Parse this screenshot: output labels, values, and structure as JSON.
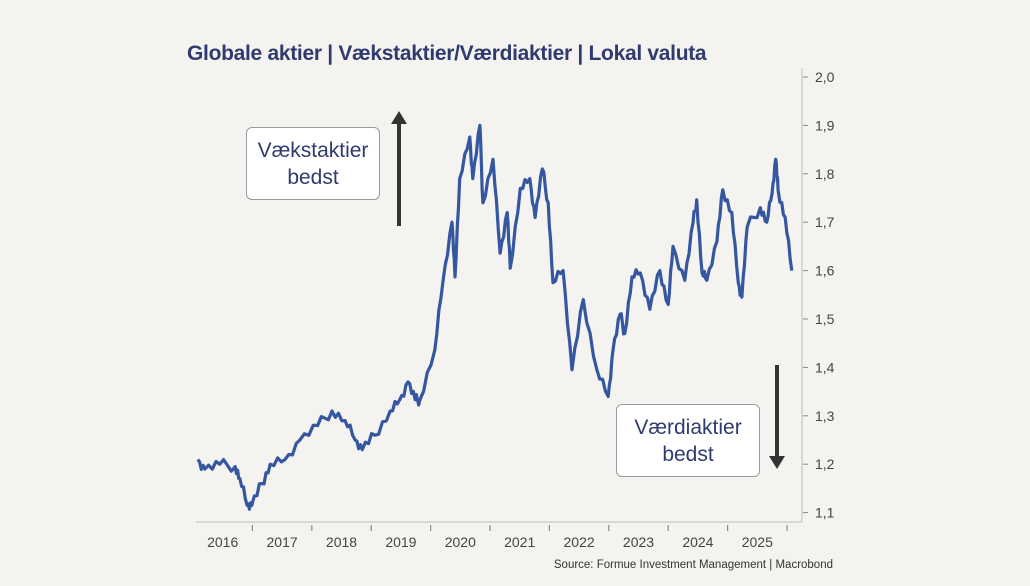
{
  "chart_data": {
    "type": "line",
    "title": "Globale aktier | Vækstaktier/Værdiaktier | Lokal valuta",
    "xlabel": "",
    "ylabel": "",
    "ylim": [
      1.1,
      2.0
    ],
    "xlim": [
      2016.0,
      2026.1
    ],
    "grid": false,
    "y_ticks": [
      "1,1",
      "1,2",
      "1,3",
      "1,4",
      "1,5",
      "1,6",
      "1,7",
      "1,8",
      "1,9",
      "2,0"
    ],
    "y_tick_values": [
      1.1,
      1.2,
      1.3,
      1.4,
      1.5,
      1.6,
      1.7,
      1.8,
      1.9,
      2.0
    ],
    "x_ticks": [
      "2016",
      "2017",
      "2018",
      "2019",
      "2020",
      "2021",
      "2022",
      "2023",
      "2024",
      "2025"
    ],
    "line_color": "#3457a0",
    "series": [
      {
        "name": "Vækstaktier/Værdiaktier",
        "x": [
          2016.08,
          2016.2,
          2016.45,
          2016.71,
          2016.79,
          2016.91,
          2016.99,
          2017.16,
          2017.3,
          2017.55,
          2017.8,
          2018.1,
          2018.34,
          2018.56,
          2018.73,
          2018.85,
          2019.06,
          2019.32,
          2019.48,
          2019.62,
          2019.74,
          2019.82,
          2020.07,
          2020.21,
          2020.36,
          2020.41,
          2020.49,
          2020.66,
          2020.71,
          2020.83,
          2020.88,
          2021.05,
          2021.17,
          2021.29,
          2021.34,
          2021.51,
          2021.67,
          2021.76,
          2021.88,
          2021.98,
          2022.06,
          2022.23,
          2022.38,
          2022.57,
          2022.8,
          2022.99,
          2023.07,
          2023.19,
          2023.27,
          2023.39,
          2023.53,
          2023.69,
          2023.86,
          2024.0,
          2024.08,
          2024.28,
          2024.42,
          2024.48,
          2024.57,
          2024.65,
          2024.82,
          2024.92,
          2025.07,
          2025.18,
          2025.24,
          2025.33,
          2025.55,
          2025.66,
          2025.75,
          2025.81,
          2025.85,
          2025.97,
          2026.08
        ],
        "values": [
          1.21,
          1.19,
          1.2,
          1.195,
          1.17,
          1.115,
          1.115,
          1.16,
          1.2,
          1.21,
          1.25,
          1.28,
          1.31,
          1.29,
          1.25,
          1.23,
          1.26,
          1.31,
          1.333,
          1.37,
          1.333,
          1.333,
          1.436,
          1.58,
          1.7,
          1.587,
          1.79,
          1.876,
          1.79,
          1.9,
          1.74,
          1.83,
          1.636,
          1.72,
          1.605,
          1.77,
          1.79,
          1.71,
          1.81,
          1.74,
          1.575,
          1.6,
          1.395,
          1.54,
          1.395,
          1.34,
          1.436,
          1.51,
          1.47,
          1.587,
          1.595,
          1.52,
          1.6,
          1.53,
          1.65,
          1.58,
          1.7,
          1.746,
          1.595,
          1.58,
          1.66,
          1.767,
          1.72,
          1.575,
          1.545,
          1.69,
          1.73,
          1.7,
          1.76,
          1.83,
          1.766,
          1.71,
          1.6
        ]
      }
    ],
    "annotations": [
      {
        "text_line1": "Vækstaktier",
        "text_line2": "bedst",
        "arrow": "up"
      },
      {
        "text_line1": "Værdiaktier",
        "text_line2": "bedst",
        "arrow": "down"
      }
    ],
    "source": "Source: Formue Investment Management | Macrobond"
  }
}
